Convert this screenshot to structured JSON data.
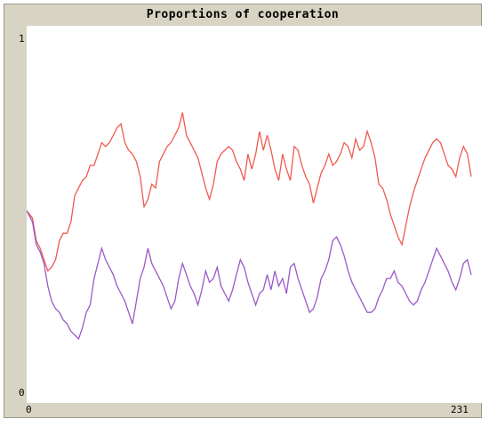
{
  "chart_data": {
    "type": "line",
    "title": "Proportions of cooperation",
    "xlabel": "",
    "ylabel": "",
    "xlim": [
      0,
      231
    ],
    "ylim": [
      0,
      1
    ],
    "x_tick_labels": [
      "0",
      "231"
    ],
    "y_tick_labels": [
      "0",
      "1"
    ],
    "grid": false,
    "series": [
      {
        "color": "#f05a4f",
        "points": [
          [
            0,
            0.51
          ],
          [
            3,
            0.49
          ],
          [
            5,
            0.43
          ],
          [
            7,
            0.41
          ],
          [
            9,
            0.38
          ],
          [
            11,
            0.35
          ],
          [
            13,
            0.36
          ],
          [
            15,
            0.38
          ],
          [
            17,
            0.43
          ],
          [
            19,
            0.45
          ],
          [
            21,
            0.45
          ],
          [
            23,
            0.48
          ],
          [
            25,
            0.55
          ],
          [
            27,
            0.57
          ],
          [
            29,
            0.59
          ],
          [
            31,
            0.6
          ],
          [
            33,
            0.63
          ],
          [
            35,
            0.63
          ],
          [
            37,
            0.66
          ],
          [
            39,
            0.69
          ],
          [
            41,
            0.68
          ],
          [
            43,
            0.69
          ],
          [
            45,
            0.71
          ],
          [
            47,
            0.73
          ],
          [
            49,
            0.74
          ],
          [
            51,
            0.69
          ],
          [
            53,
            0.67
          ],
          [
            55,
            0.66
          ],
          [
            57,
            0.64
          ],
          [
            59,
            0.6
          ],
          [
            61,
            0.52
          ],
          [
            63,
            0.54
          ],
          [
            65,
            0.58
          ],
          [
            67,
            0.57
          ],
          [
            69,
            0.64
          ],
          [
            71,
            0.66
          ],
          [
            73,
            0.68
          ],
          [
            75,
            0.69
          ],
          [
            77,
            0.71
          ],
          [
            79,
            0.73
          ],
          [
            81,
            0.77
          ],
          [
            83,
            0.71
          ],
          [
            85,
            0.69
          ],
          [
            87,
            0.67
          ],
          [
            89,
            0.65
          ],
          [
            91,
            0.61
          ],
          [
            93,
            0.57
          ],
          [
            95,
            0.54
          ],
          [
            97,
            0.58
          ],
          [
            99,
            0.64
          ],
          [
            101,
            0.66
          ],
          [
            103,
            0.67
          ],
          [
            105,
            0.68
          ],
          [
            107,
            0.67
          ],
          [
            109,
            0.64
          ],
          [
            111,
            0.62
          ],
          [
            113,
            0.59
          ],
          [
            115,
            0.66
          ],
          [
            117,
            0.62
          ],
          [
            119,
            0.66
          ],
          [
            121,
            0.72
          ],
          [
            123,
            0.67
          ],
          [
            125,
            0.71
          ],
          [
            127,
            0.67
          ],
          [
            129,
            0.62
          ],
          [
            131,
            0.59
          ],
          [
            133,
            0.66
          ],
          [
            135,
            0.62
          ],
          [
            137,
            0.59
          ],
          [
            139,
            0.68
          ],
          [
            141,
            0.67
          ],
          [
            143,
            0.63
          ],
          [
            145,
            0.6
          ],
          [
            147,
            0.58
          ],
          [
            149,
            0.53
          ],
          [
            151,
            0.57
          ],
          [
            153,
            0.61
          ],
          [
            155,
            0.63
          ],
          [
            157,
            0.66
          ],
          [
            159,
            0.63
          ],
          [
            161,
            0.64
          ],
          [
            163,
            0.66
          ],
          [
            165,
            0.69
          ],
          [
            167,
            0.68
          ],
          [
            169,
            0.65
          ],
          [
            171,
            0.7
          ],
          [
            173,
            0.67
          ],
          [
            175,
            0.68
          ],
          [
            177,
            0.72
          ],
          [
            179,
            0.69
          ],
          [
            181,
            0.65
          ],
          [
            183,
            0.58
          ],
          [
            185,
            0.57
          ],
          [
            187,
            0.54
          ],
          [
            189,
            0.5
          ],
          [
            191,
            0.47
          ],
          [
            193,
            0.44
          ],
          [
            195,
            0.42
          ],
          [
            197,
            0.47
          ],
          [
            199,
            0.52
          ],
          [
            201,
            0.56
          ],
          [
            203,
            0.59
          ],
          [
            205,
            0.62
          ],
          [
            207,
            0.65
          ],
          [
            209,
            0.67
          ],
          [
            211,
            0.69
          ],
          [
            213,
            0.7
          ],
          [
            215,
            0.69
          ],
          [
            217,
            0.66
          ],
          [
            219,
            0.63
          ],
          [
            221,
            0.62
          ],
          [
            223,
            0.6
          ],
          [
            225,
            0.65
          ],
          [
            227,
            0.68
          ],
          [
            229,
            0.66
          ],
          [
            231,
            0.6
          ]
        ]
      },
      {
        "color": "#9b59c9",
        "points": [
          [
            0,
            0.51
          ],
          [
            3,
            0.48
          ],
          [
            5,
            0.42
          ],
          [
            7,
            0.4
          ],
          [
            9,
            0.37
          ],
          [
            11,
            0.31
          ],
          [
            13,
            0.27
          ],
          [
            15,
            0.25
          ],
          [
            17,
            0.24
          ],
          [
            19,
            0.22
          ],
          [
            21,
            0.21
          ],
          [
            23,
            0.19
          ],
          [
            25,
            0.18
          ],
          [
            27,
            0.17
          ],
          [
            29,
            0.2
          ],
          [
            31,
            0.24
          ],
          [
            33,
            0.26
          ],
          [
            35,
            0.33
          ],
          [
            37,
            0.37
          ],
          [
            39,
            0.41
          ],
          [
            41,
            0.38
          ],
          [
            43,
            0.36
          ],
          [
            45,
            0.34
          ],
          [
            47,
            0.31
          ],
          [
            49,
            0.29
          ],
          [
            51,
            0.27
          ],
          [
            53,
            0.24
          ],
          [
            55,
            0.21
          ],
          [
            57,
            0.27
          ],
          [
            59,
            0.33
          ],
          [
            61,
            0.36
          ],
          [
            63,
            0.41
          ],
          [
            65,
            0.37
          ],
          [
            67,
            0.35
          ],
          [
            69,
            0.33
          ],
          [
            71,
            0.31
          ],
          [
            73,
            0.28
          ],
          [
            75,
            0.25
          ],
          [
            77,
            0.27
          ],
          [
            79,
            0.33
          ],
          [
            81,
            0.37
          ],
          [
            83,
            0.34
          ],
          [
            85,
            0.31
          ],
          [
            87,
            0.29
          ],
          [
            89,
            0.26
          ],
          [
            91,
            0.3
          ],
          [
            93,
            0.35
          ],
          [
            95,
            0.32
          ],
          [
            97,
            0.33
          ],
          [
            99,
            0.36
          ],
          [
            101,
            0.31
          ],
          [
            103,
            0.29
          ],
          [
            105,
            0.27
          ],
          [
            107,
            0.3
          ],
          [
            109,
            0.34
          ],
          [
            111,
            0.38
          ],
          [
            113,
            0.36
          ],
          [
            115,
            0.32
          ],
          [
            117,
            0.29
          ],
          [
            119,
            0.26
          ],
          [
            121,
            0.29
          ],
          [
            123,
            0.3
          ],
          [
            125,
            0.34
          ],
          [
            127,
            0.3
          ],
          [
            129,
            0.35
          ],
          [
            131,
            0.31
          ],
          [
            133,
            0.33
          ],
          [
            135,
            0.29
          ],
          [
            137,
            0.36
          ],
          [
            139,
            0.37
          ],
          [
            141,
            0.33
          ],
          [
            143,
            0.3
          ],
          [
            145,
            0.27
          ],
          [
            147,
            0.24
          ],
          [
            149,
            0.25
          ],
          [
            151,
            0.28
          ],
          [
            153,
            0.33
          ],
          [
            155,
            0.35
          ],
          [
            157,
            0.38
          ],
          [
            159,
            0.43
          ],
          [
            161,
            0.44
          ],
          [
            163,
            0.42
          ],
          [
            165,
            0.39
          ],
          [
            167,
            0.35
          ],
          [
            169,
            0.32
          ],
          [
            171,
            0.3
          ],
          [
            173,
            0.28
          ],
          [
            175,
            0.26
          ],
          [
            177,
            0.24
          ],
          [
            179,
            0.24
          ],
          [
            181,
            0.25
          ],
          [
            183,
            0.28
          ],
          [
            185,
            0.3
          ],
          [
            187,
            0.33
          ],
          [
            189,
            0.33
          ],
          [
            191,
            0.35
          ],
          [
            193,
            0.32
          ],
          [
            195,
            0.31
          ],
          [
            197,
            0.29
          ],
          [
            199,
            0.27
          ],
          [
            201,
            0.26
          ],
          [
            203,
            0.27
          ],
          [
            205,
            0.3
          ],
          [
            207,
            0.32
          ],
          [
            209,
            0.35
          ],
          [
            211,
            0.38
          ],
          [
            213,
            0.41
          ],
          [
            215,
            0.39
          ],
          [
            217,
            0.37
          ],
          [
            219,
            0.35
          ],
          [
            221,
            0.32
          ],
          [
            223,
            0.3
          ],
          [
            225,
            0.33
          ],
          [
            227,
            0.37
          ],
          [
            229,
            0.38
          ],
          [
            231,
            0.34
          ]
        ]
      }
    ]
  }
}
